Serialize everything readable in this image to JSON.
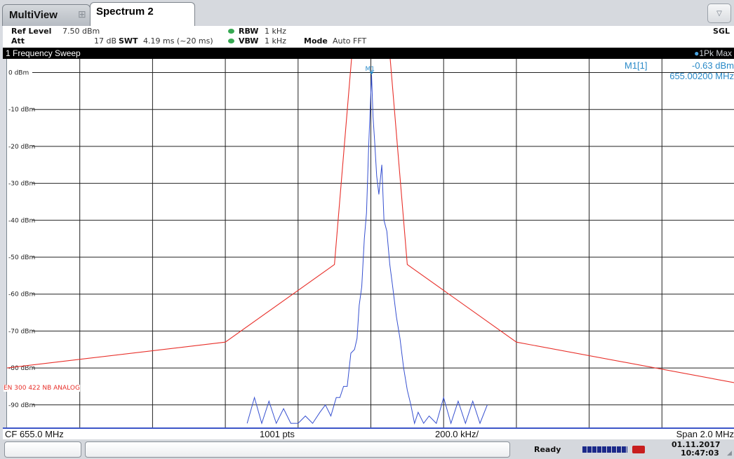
{
  "tabs": {
    "multiview": "MultiView",
    "multiview_icon": "grid-icon",
    "spectrum": "Spectrum 2",
    "dropdown": "▽"
  },
  "settings": {
    "ref_level_label": "Ref Level",
    "ref_level_value": "7.50 dBm",
    "att_label": "Att",
    "att_value": "17 dB",
    "swt_label": "SWT",
    "swt_value": "4.19 ms (~20 ms)",
    "rbw_label": "RBW",
    "rbw_value": "1 kHz",
    "vbw_label": "VBW",
    "vbw_value": "1 kHz",
    "mode_label": "Mode",
    "mode_value": "Auto FFT",
    "sgl": "SGL",
    "indicator_color": "#36a852"
  },
  "window": {
    "title": "1 Frequency Sweep",
    "trace_label": "1Pk Max",
    "trace_color": "#4aa3df"
  },
  "marker": {
    "name": "M1[1]",
    "level": "-0.63 dBm",
    "frequency": "655.00200 MHz",
    "tag": "M1"
  },
  "limit_line_label": "EN 300 422 NB ANALOG",
  "chart_data": {
    "type": "line",
    "x_unit": "MHz",
    "y_unit": "dBm",
    "xlim": [
      654.0,
      656.0
    ],
    "ylim": [
      -96.3,
      3.7
    ],
    "y_ticks": [
      {
        "value": 0,
        "label": "0 dBm"
      },
      {
        "value": -10,
        "label": "-10 dBm"
      },
      {
        "value": -20,
        "label": "-20 dBm"
      },
      {
        "value": -30,
        "label": "-30 dBm"
      },
      {
        "value": -40,
        "label": "-40 dBm"
      },
      {
        "value": -50,
        "label": "-50 dBm"
      },
      {
        "value": -60,
        "label": "-60 dBm"
      },
      {
        "value": -70,
        "label": "-70 dBm"
      },
      {
        "value": -80,
        "label": "-80 dBm"
      },
      {
        "value": -90,
        "label": "-90 dBm"
      }
    ],
    "x_divisions": 10,
    "grid": true,
    "series": [
      {
        "name": "EN 300 422 NB ANALOG",
        "color": "#e8302a",
        "x": [
          654.0,
          654.6,
          654.9,
          654.95,
          655.05,
          655.1,
          655.4,
          656.0
        ],
        "y": [
          -80,
          -73,
          -52,
          7.5,
          7.5,
          -52,
          -73,
          -84
        ]
      },
      {
        "name": "1Pk Max",
        "color": "#3650d0",
        "x": [
          654.66,
          654.68,
          654.7,
          654.72,
          654.74,
          654.76,
          654.78,
          654.8,
          654.82,
          654.84,
          654.86,
          654.875,
          654.89,
          654.905,
          654.915,
          654.925,
          654.935,
          654.945,
          654.955,
          654.962,
          654.968,
          654.975,
          654.982,
          654.988,
          654.994,
          655.002,
          655.006,
          655.01,
          655.016,
          655.022,
          655.03,
          655.036,
          655.044,
          655.052,
          655.06,
          655.07,
          655.08,
          655.09,
          655.1,
          655.11,
          655.12,
          655.13,
          655.145,
          655.16,
          655.18,
          655.2,
          655.22,
          655.24,
          655.26,
          655.28,
          655.3,
          655.32
        ],
        "y": [
          -95,
          -88,
          -95,
          -89,
          -95,
          -91,
          -95,
          -95,
          -93,
          -95,
          -92,
          -90,
          -93,
          -88,
          -88,
          -85,
          -85,
          -76,
          -75,
          -72,
          -63,
          -58,
          -45,
          -38,
          -20,
          -0.63,
          -12,
          -18,
          -28,
          -33,
          -25,
          -40,
          -43,
          -52,
          -58,
          -66,
          -72,
          -80,
          -86,
          -90,
          -95,
          -92,
          -95,
          -93,
          -95,
          -88,
          -95,
          -89,
          -95,
          -89,
          -95,
          -90
        ]
      }
    ]
  },
  "axis": {
    "cf": "CF 655.0 MHz",
    "pts": "1001 pts",
    "div": "200.0 kHz/",
    "span": "Span 2.0 MHz"
  },
  "status": {
    "ready": "Ready",
    "date": "01.11.2017",
    "time": "10:47:03"
  }
}
